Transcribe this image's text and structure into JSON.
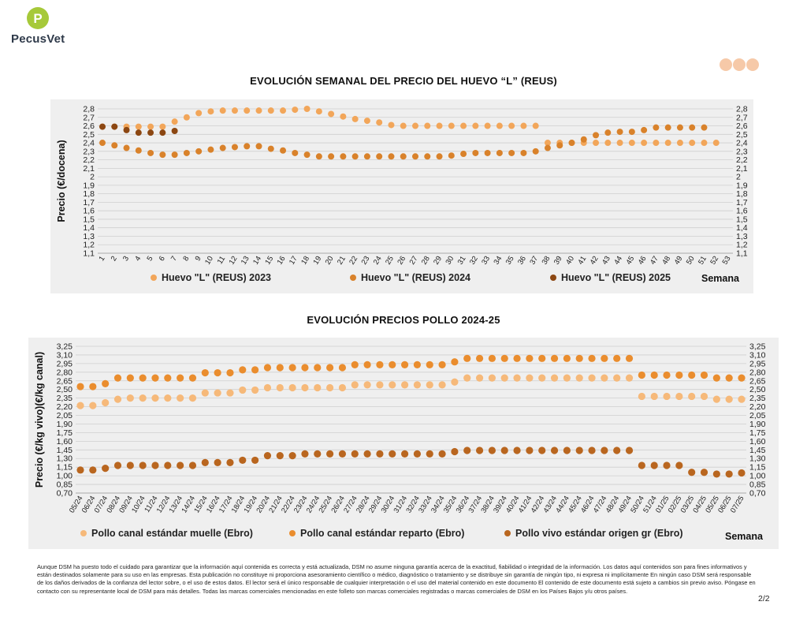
{
  "brand": {
    "name": "PecusVet",
    "logo_letter": "P"
  },
  "chart_data": [
    {
      "type": "scatter",
      "title": "EVOLUCIÓN SEMANAL DEL PRECIO DEL HUEVO “L” (REUS)",
      "xlabel": "Semana",
      "ylabel": "Precio (€/docena)",
      "ylim": [
        1.1,
        2.8
      ],
      "yticks": [
        "1,1",
        "1,2",
        "1,3",
        "1,4",
        "1,5",
        "1,6",
        "1,7",
        "1,8",
        "1,9",
        "2",
        "2,1",
        "2,2",
        "2,3",
        "2,4",
        "2,5",
        "2,6",
        "2,7",
        "2,8"
      ],
      "categories": [
        "1",
        "2",
        "3",
        "4",
        "5",
        "6",
        "7",
        "8",
        "9",
        "10",
        "11",
        "12",
        "13",
        "14",
        "15",
        "16",
        "17",
        "18",
        "19",
        "20",
        "21",
        "22",
        "23",
        "24",
        "25",
        "26",
        "27",
        "28",
        "29",
        "30",
        "31",
        "32",
        "33",
        "34",
        "35",
        "36",
        "37",
        "38",
        "39",
        "40",
        "41",
        "42",
        "43",
        "44",
        "45",
        "46",
        "47",
        "48",
        "49",
        "50",
        "51",
        "52",
        "53"
      ],
      "legend_position": "bottom",
      "grid": true,
      "series": [
        {
          "name": "Huevo \"L\" (REUS) 2023",
          "color": "#f2a65a",
          "values": [
            2.59,
            2.59,
            2.59,
            2.59,
            2.59,
            2.59,
            2.65,
            2.7,
            2.75,
            2.77,
            2.78,
            2.78,
            2.78,
            2.78,
            2.78,
            2.78,
            2.79,
            2.8,
            2.77,
            2.74,
            2.71,
            2.68,
            2.66,
            2.64,
            2.61,
            2.6,
            2.6,
            2.6,
            2.6,
            2.6,
            2.6,
            2.6,
            2.6,
            2.6,
            2.6,
            2.6,
            2.6,
            2.4,
            2.4,
            2.4,
            2.4,
            2.4,
            2.4,
            2.4,
            2.4,
            2.4,
            2.4,
            2.4,
            2.4,
            2.4,
            2.4,
            2.4,
            null
          ]
        },
        {
          "name": "Huevo \"L\" (REUS) 2024",
          "color": "#d9822b",
          "values": [
            2.4,
            2.37,
            2.34,
            2.31,
            2.28,
            2.26,
            2.26,
            2.28,
            2.3,
            2.32,
            2.34,
            2.35,
            2.36,
            2.36,
            2.33,
            2.31,
            2.28,
            2.26,
            2.24,
            2.24,
            2.24,
            2.24,
            2.24,
            2.24,
            2.24,
            2.24,
            2.24,
            2.24,
            2.24,
            2.25,
            2.27,
            2.28,
            2.28,
            2.28,
            2.28,
            2.28,
            2.3,
            2.34,
            2.37,
            2.4,
            2.44,
            2.49,
            2.52,
            2.53,
            2.53,
            2.55,
            2.58,
            2.58,
            2.58,
            2.58,
            2.58,
            null,
            null
          ]
        },
        {
          "name": "Huevo \"L\" (REUS) 2025",
          "color": "#8c4712",
          "values": [
            2.59,
            2.59,
            2.55,
            2.52,
            2.52,
            2.52,
            2.54,
            null,
            null,
            null,
            null,
            null,
            null,
            null,
            null,
            null,
            null,
            null,
            null,
            null,
            null,
            null,
            null,
            null,
            null,
            null,
            null,
            null,
            null,
            null,
            null,
            null,
            null,
            null,
            null,
            null,
            null,
            null,
            null,
            null,
            null,
            null,
            null,
            null,
            null,
            null,
            null,
            null,
            null,
            null,
            null,
            null,
            null
          ]
        }
      ]
    },
    {
      "type": "scatter",
      "title": "EVOLUCIÓN PRECIOS POLLO 2024-25",
      "xlabel": "Semana",
      "ylabel": "Precio (€/kg vivo)(€/kg canal)",
      "ylim": [
        0.7,
        3.25
      ],
      "yticks": [
        "0,70",
        "0,85",
        "1,00",
        "1,15",
        "1,30",
        "1,45",
        "1,60",
        "1,75",
        "1,90",
        "2,05",
        "2,20",
        "2,35",
        "2,50",
        "2,65",
        "2,80",
        "2,95",
        "3,10",
        "3,25"
      ],
      "categories": [
        "05/24",
        "06/24",
        "07/24",
        "08/24",
        "09/24",
        "10/24",
        "11/24",
        "12/24",
        "13/24",
        "14/24",
        "15/24",
        "16/24",
        "17/24",
        "18/24",
        "19/24",
        "20/24",
        "21/24",
        "22/24",
        "23/24",
        "24/24",
        "25/24",
        "26/24",
        "27/24",
        "28/24",
        "29/24",
        "30/24",
        "31/24",
        "32/24",
        "33/24",
        "34/24",
        "35/24",
        "36/24",
        "37/24",
        "38/24",
        "39/24",
        "40/24",
        "41/24",
        "42/24",
        "43/24",
        "44/24",
        "45/24",
        "46/24",
        "47/24",
        "48/24",
        "49/24",
        "50/24",
        "51/24",
        "01/25",
        "02/25",
        "03/25",
        "04/25",
        "05/25",
        "06/25",
        "07/25"
      ],
      "legend_position": "bottom",
      "grid": true,
      "series": [
        {
          "name": "Pollo canal estándar muelle (Ebro)",
          "color": "#f6b97a",
          "values": [
            2.22,
            2.22,
            2.27,
            2.33,
            2.35,
            2.35,
            2.35,
            2.35,
            2.35,
            2.35,
            2.44,
            2.44,
            2.44,
            2.49,
            2.49,
            2.53,
            2.53,
            2.53,
            2.53,
            2.53,
            2.53,
            2.53,
            2.58,
            2.58,
            2.58,
            2.58,
            2.58,
            2.58,
            2.58,
            2.58,
            2.63,
            2.7,
            2.7,
            2.7,
            2.7,
            2.7,
            2.7,
            2.7,
            2.7,
            2.7,
            2.7,
            2.7,
            2.7,
            2.7,
            2.7,
            2.38,
            2.38,
            2.38,
            2.38,
            2.38,
            2.38,
            2.33,
            2.33,
            2.33
          ]
        },
        {
          "name": "Pollo canal estándar reparto (Ebro)",
          "color": "#ea8d2e",
          "values": [
            2.55,
            2.55,
            2.6,
            2.7,
            2.7,
            2.7,
            2.7,
            2.7,
            2.7,
            2.7,
            2.79,
            2.79,
            2.79,
            2.84,
            2.84,
            2.88,
            2.88,
            2.88,
            2.88,
            2.88,
            2.88,
            2.88,
            2.93,
            2.93,
            2.93,
            2.93,
            2.93,
            2.93,
            2.93,
            2.93,
            2.98,
            3.04,
            3.04,
            3.04,
            3.04,
            3.04,
            3.04,
            3.04,
            3.04,
            3.04,
            3.04,
            3.04,
            3.04,
            3.04,
            3.04,
            2.75,
            2.75,
            2.75,
            2.75,
            2.75,
            2.75,
            2.7,
            2.7,
            2.7
          ]
        },
        {
          "name": "Pollo vivo estándar origen gr (Ebro)",
          "color": "#b9661f",
          "values": [
            1.1,
            1.1,
            1.13,
            1.18,
            1.18,
            1.18,
            1.18,
            1.18,
            1.18,
            1.18,
            1.23,
            1.23,
            1.23,
            1.27,
            1.27,
            1.35,
            1.35,
            1.35,
            1.38,
            1.38,
            1.38,
            1.38,
            1.38,
            1.38,
            1.38,
            1.38,
            1.38,
            1.38,
            1.38,
            1.38,
            1.42,
            1.44,
            1.44,
            1.44,
            1.44,
            1.44,
            1.44,
            1.44,
            1.44,
            1.44,
            1.44,
            1.44,
            1.44,
            1.44,
            1.44,
            1.18,
            1.18,
            1.18,
            1.18,
            1.06,
            1.06,
            1.03,
            1.03,
            1.05
          ]
        }
      ]
    }
  ],
  "disclaimer": "Aunque DSM ha puesto todo el cuidado para garantizar que la información aquí contenida es correcta y está actualizada, DSM no asume ninguna garantía acerca de la exactitud, fiabilidad o integridad de la información. Los datos aquí contenidos son para fines informativos y están destinados solamente para su uso en las empresas. Esta publicación no constituye ni proporciona asesoramiento científico o médico, diagnóstico o tratamiento y se distribuye sin garantía de ningún tipo, ni expresa ni implícitamente En ningún caso DSM será responsable de los daños derivados de la confianza del lector sobre, o el uso de estos datos. El lector será el único responsable de cualquier interpretación o el uso del material contenido en este documento El contenido de este documento está sujeto a cambios sin previo aviso. Póngase en contacto con su representante local de DSM para más detalles. Todas las marcas comerciales mencionadas en este folleto son marcas comerciales registradas o marcas comerciales de DSM en los Países Bajos y/u otros países.",
  "page_number": "2/2",
  "decor": {
    "dot_colors": [
      "#f6c9a8",
      "#f6c9a8",
      "#f6c9a8"
    ]
  }
}
